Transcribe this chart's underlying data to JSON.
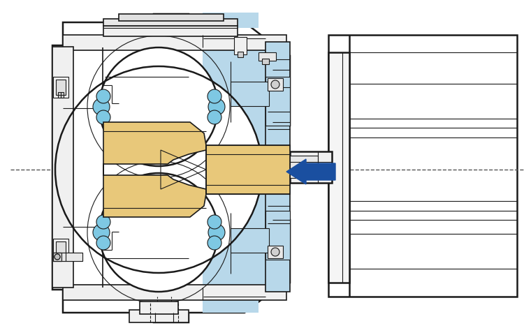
{
  "bg_color": "#ffffff",
  "light_blue": "#b8d8ea",
  "tan": "#e8c87a",
  "blue_arrow": "#1a4fa0",
  "line_color": "#1a1a1a",
  "figure_size": [
    7.5,
    4.8
  ],
  "dpi": 100,
  "centerline_color": "#555555"
}
